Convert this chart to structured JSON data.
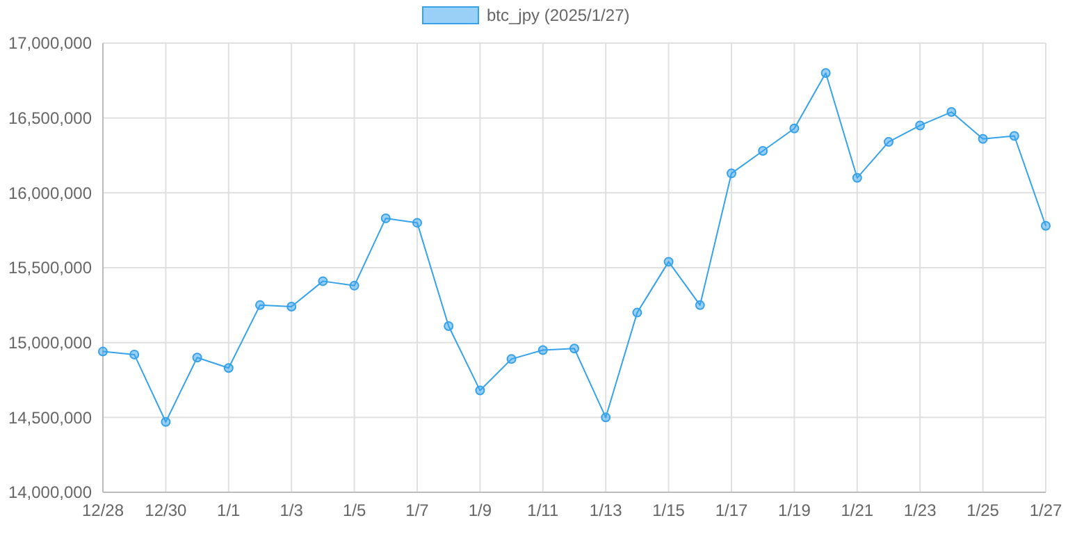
{
  "chart_data": {
    "type": "line",
    "categories": [
      "12/28",
      null,
      "12/30",
      null,
      "1/1",
      null,
      "1/3",
      null,
      "1/5",
      null,
      "1/7",
      null,
      "1/9",
      null,
      "1/11",
      null,
      "1/13",
      null,
      "1/15",
      null,
      "1/17",
      null,
      "1/19",
      null,
      "1/21",
      null,
      "1/23",
      null,
      "1/25",
      null,
      "1/27"
    ],
    "series": [
      {
        "name": "btc_jpy (2025/1/27)",
        "color": "#36a2eb",
        "values": [
          14940000,
          14920000,
          14470000,
          14900000,
          14830000,
          15250000,
          15240000,
          15410000,
          15380000,
          15830000,
          15800000,
          15110000,
          14680000,
          14890000,
          14950000,
          14960000,
          14500000,
          15200000,
          15540000,
          15250000,
          16130000,
          16280000,
          16430000,
          16800000,
          16100000,
          16340000,
          16450000,
          16540000,
          16360000,
          16380000,
          15780000
        ]
      }
    ],
    "ylim": [
      14000000,
      17000000
    ],
    "yticks": [
      {
        "value": 14000000,
        "label": "14,000,000"
      },
      {
        "value": 14500000,
        "label": "14,500,000"
      },
      {
        "value": 15000000,
        "label": "15,000,000"
      },
      {
        "value": 15500000,
        "label": "15,500,000"
      },
      {
        "value": 16000000,
        "label": "16,000,000"
      },
      {
        "value": 16500000,
        "label": "16,500,000"
      },
      {
        "value": 17000000,
        "label": "17,000,000"
      }
    ],
    "grid": true,
    "legend": "top",
    "marker": "circle",
    "line_style": "solid"
  }
}
